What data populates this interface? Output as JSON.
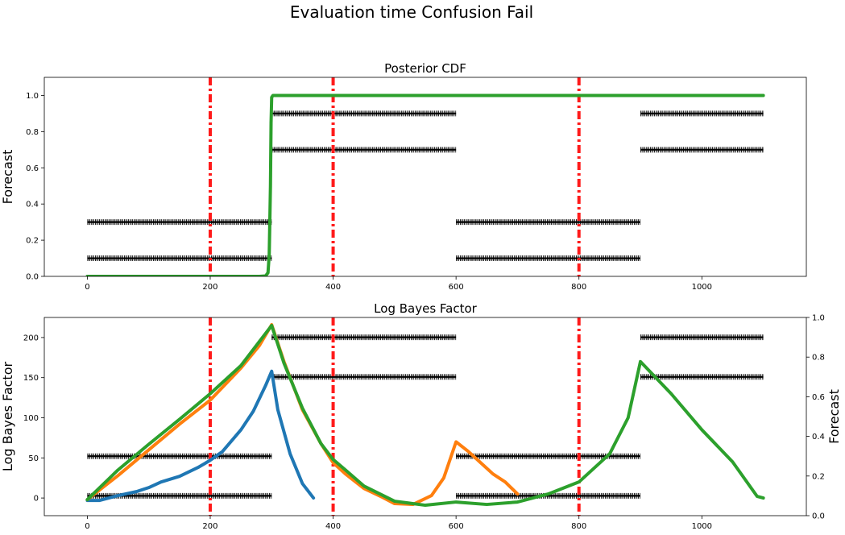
{
  "figure": {
    "suptitle": "Evaluation time Confusion Fail"
  },
  "colors": {
    "blue": "#1f77b4",
    "orange": "#ff7f0e",
    "green": "#2ca02c",
    "vline": "#ff1a1a",
    "markers": "#000000"
  },
  "chart_data": [
    {
      "type": "line",
      "title": "Posterior CDF",
      "xlabel": "",
      "ylabel": "Forecast",
      "xlim": [
        -70,
        1170
      ],
      "ylim": [
        0,
        1.1
      ],
      "xticks": [
        0,
        200,
        400,
        600,
        800,
        1000
      ],
      "yticks": [
        0.0,
        0.2,
        0.4,
        0.6,
        0.8,
        1.0
      ],
      "ytick_labels": [
        "0.0",
        "0.2",
        "0.4",
        "0.6",
        "0.8",
        "1.0"
      ],
      "vlines": [
        200,
        400,
        800
      ],
      "forecast_markers": [
        {
          "x_start": 0,
          "x_end": 300,
          "y": 0.1
        },
        {
          "x_start": 0,
          "x_end": 300,
          "y": 0.3
        },
        {
          "x_start": 300,
          "x_end": 600,
          "y": 0.7
        },
        {
          "x_start": 300,
          "x_end": 600,
          "y": 0.9
        },
        {
          "x_start": 600,
          "x_end": 900,
          "y": 0.1
        },
        {
          "x_start": 600,
          "x_end": 900,
          "y": 0.3
        },
        {
          "x_start": 900,
          "x_end": 1100,
          "y": 0.7
        },
        {
          "x_start": 900,
          "x_end": 1100,
          "y": 0.9
        }
      ],
      "series": [
        {
          "color": "green",
          "x": [
            0,
            280,
            290,
            294,
            296,
            298,
            299,
            300,
            302,
            1100
          ],
          "y": [
            0,
            0,
            0.002,
            0.02,
            0.12,
            0.5,
            0.85,
            0.99,
            1.0,
            1.0
          ]
        }
      ]
    },
    {
      "type": "line",
      "title": "Log Bayes Factor",
      "xlabel": "",
      "ylabel": "Log Bayes Factor",
      "y2label": "Forecast",
      "xlim": [
        -70,
        1170
      ],
      "ylim": [
        -22,
        225
      ],
      "y2lim": [
        0,
        1.0
      ],
      "xticks": [
        0,
        200,
        400,
        600,
        800,
        1000
      ],
      "yticks": [
        0,
        50,
        100,
        150,
        200
      ],
      "ytick_labels": [
        "0",
        "50",
        "100",
        "150",
        "200"
      ],
      "y2ticks": [
        0.0,
        0.2,
        0.4,
        0.6,
        0.8,
        1.0
      ],
      "y2tick_labels": [
        "0.0",
        "0.2",
        "0.4",
        "0.6",
        "0.8",
        "1.0"
      ],
      "vlines": [
        200,
        400,
        800
      ],
      "forecast_markers": [
        {
          "x_start": 0,
          "x_end": 300,
          "y": 0.1
        },
        {
          "x_start": 0,
          "x_end": 300,
          "y": 0.3
        },
        {
          "x_start": 300,
          "x_end": 600,
          "y": 0.7
        },
        {
          "x_start": 300,
          "x_end": 600,
          "y": 0.9
        },
        {
          "x_start": 600,
          "x_end": 900,
          "y": 0.1
        },
        {
          "x_start": 600,
          "x_end": 900,
          "y": 0.3
        },
        {
          "x_start": 900,
          "x_end": 1100,
          "y": 0.7
        },
        {
          "x_start": 900,
          "x_end": 1100,
          "y": 0.9
        }
      ],
      "series": [
        {
          "color": "blue",
          "x": [
            0,
            20,
            50,
            80,
            100,
            120,
            150,
            180,
            200,
            220,
            250,
            270,
            290,
            300,
            310,
            330,
            350,
            368
          ],
          "y": [
            -3,
            -3,
            3,
            8,
            13,
            20,
            27,
            38,
            47,
            58,
            85,
            108,
            140,
            158,
            110,
            55,
            18,
            0
          ]
        },
        {
          "color": "orange",
          "x": [
            0,
            50,
            100,
            150,
            200,
            250,
            280,
            300,
            320,
            350,
            380,
            400,
            420,
            450,
            480,
            500,
            530,
            560,
            580,
            600,
            620,
            640,
            660,
            680,
            700
          ],
          "y": [
            -2,
            28,
            60,
            92,
            122,
            162,
            190,
            216,
            170,
            110,
            68,
            44,
            30,
            12,
            1,
            -7,
            -8,
            3,
            25,
            70,
            58,
            44,
            30,
            20,
            5
          ]
        },
        {
          "color": "green",
          "x": [
            0,
            50,
            100,
            150,
            200,
            250,
            280,
            300,
            320,
            350,
            380,
            400,
            420,
            450,
            500,
            550,
            600,
            650,
            700,
            750,
            800,
            850,
            880,
            900,
            950,
            1000,
            1050,
            1090,
            1100
          ],
          "y": [
            -2,
            35,
            67,
            98,
            130,
            165,
            195,
            215,
            168,
            112,
            68,
            48,
            35,
            15,
            -4,
            -9,
            -5,
            -8,
            -5,
            5,
            20,
            55,
            100,
            170,
            130,
            85,
            45,
            2,
            0
          ]
        }
      ]
    }
  ]
}
